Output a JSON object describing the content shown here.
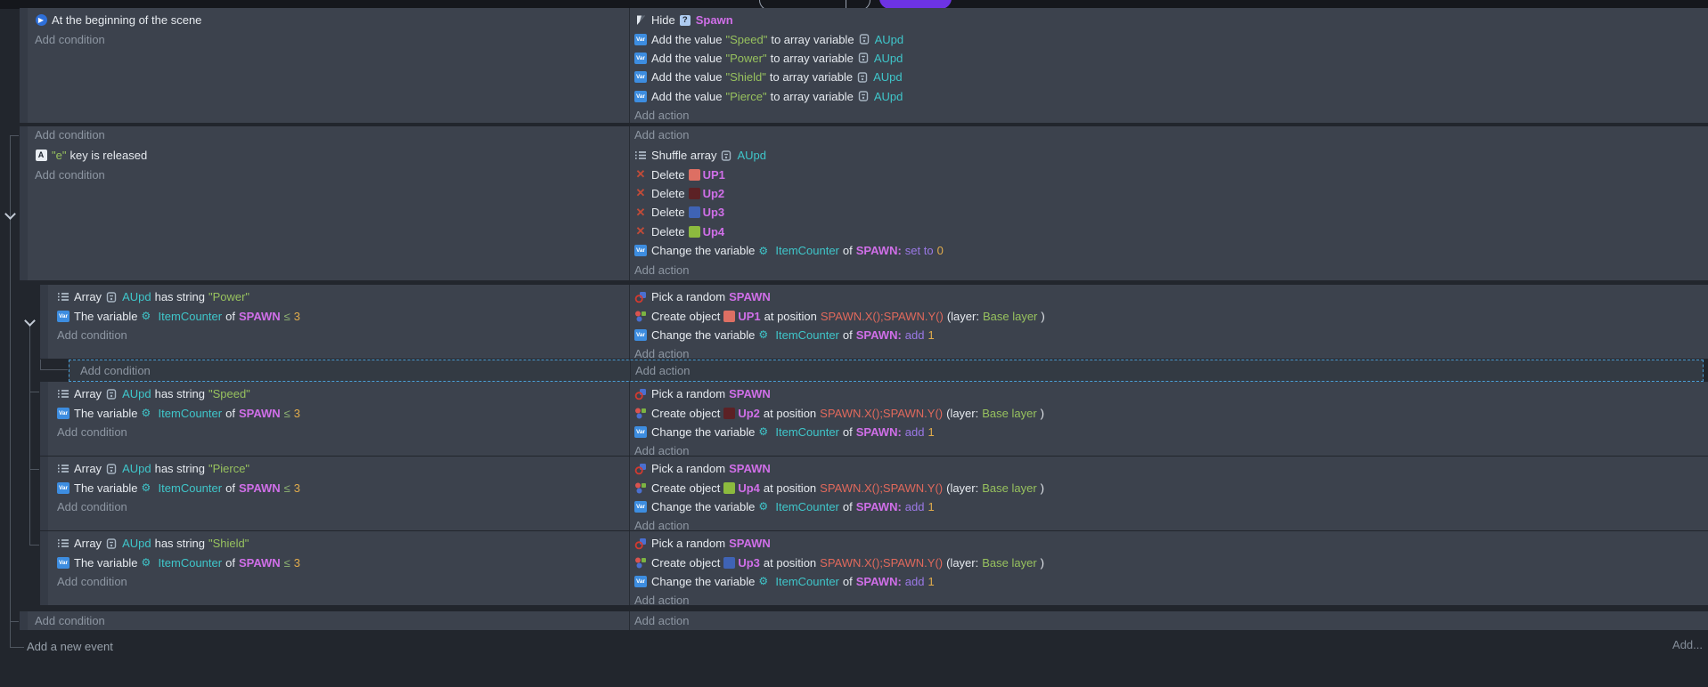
{
  "topbar": {
    "buttons": [
      {
        "name": "toolbar-split-button",
        "style": "outlined"
      },
      {
        "name": "toolbar-primary-button",
        "color": "#6d33e3"
      }
    ]
  },
  "colors": {
    "object_name": "#d06fe8",
    "string_literal": "#97c15e",
    "variable": "#3fc6ca",
    "number": "#e0ab4c",
    "operator": "#9b79e6",
    "expression": "#e0695c",
    "event_background": "#3c424d",
    "selection_dashed": "#4b9fd6",
    "swatch_up1": "#dd6f63",
    "swatch_up2": "#5c2125",
    "swatch_up3": "#3f63b5",
    "swatch_up4": "#8cba3e"
  },
  "events": [
    {
      "conditions": [
        [
          {
            "i": "scene-begin-icon"
          },
          {
            "k": "t",
            "v": "At the beginning of the scene"
          }
        ],
        [
          {
            "k": "ph",
            "v": "Add condition"
          }
        ]
      ],
      "actions": [
        [
          {
            "i": "hide-object-icon"
          },
          {
            "k": "t",
            "v": "Hide"
          },
          {
            "i": "question-badge-icon"
          },
          {
            "k": "obj",
            "v": "Spawn"
          }
        ],
        [
          {
            "i": "variable-icon"
          },
          {
            "k": "t",
            "v": "Add the value"
          },
          {
            "k": "str",
            "v": "\"Speed\""
          },
          {
            "k": "t",
            "v": "to array variable"
          },
          {
            "i": "structure-badge-icon"
          },
          {
            "k": "var",
            "v": "AUpd"
          }
        ],
        [
          {
            "i": "variable-icon"
          },
          {
            "k": "t",
            "v": "Add the value"
          },
          {
            "k": "str",
            "v": "\"Power\""
          },
          {
            "k": "t",
            "v": "to array variable"
          },
          {
            "i": "structure-badge-icon"
          },
          {
            "k": "var",
            "v": "AUpd"
          }
        ],
        [
          {
            "i": "variable-icon"
          },
          {
            "k": "t",
            "v": "Add the value"
          },
          {
            "k": "str",
            "v": "\"Shield\""
          },
          {
            "k": "t",
            "v": "to array variable"
          },
          {
            "i": "structure-badge-icon"
          },
          {
            "k": "var",
            "v": "AUpd"
          }
        ],
        [
          {
            "i": "variable-icon"
          },
          {
            "k": "t",
            "v": "Add the value"
          },
          {
            "k": "str",
            "v": "\"Pierce\""
          },
          {
            "k": "t",
            "v": "to array variable"
          },
          {
            "i": "structure-badge-icon"
          },
          {
            "k": "var",
            "v": "AUpd"
          }
        ],
        [
          {
            "k": "ph",
            "v": "Add action"
          }
        ]
      ]
    },
    {
      "conditions": [
        [
          {
            "k": "ph",
            "v": "Add condition"
          }
        ]
      ],
      "actions": [
        [
          {
            "k": "ph",
            "v": "Add action"
          }
        ]
      ]
    },
    {
      "conditions": [
        [
          {
            "i": "keyboard-key-icon"
          },
          {
            "k": "str",
            "v": "\"e\""
          },
          {
            "k": "t",
            "v": "key is released"
          }
        ],
        [
          {
            "k": "ph",
            "v": "Add condition"
          }
        ]
      ],
      "actions": [
        [
          {
            "i": "shuffle-array-icon"
          },
          {
            "k": "t",
            "v": "Shuffle array"
          },
          {
            "i": "structure-badge-icon"
          },
          {
            "k": "var",
            "v": "AUpd"
          }
        ],
        [
          {
            "i": "delete-icon"
          },
          {
            "k": "t",
            "v": "Delete"
          },
          {
            "sw": "#dd6f63",
            "name": "up1-color-swatch"
          },
          {
            "k": "obj",
            "v": "UP1"
          }
        ],
        [
          {
            "i": "delete-icon"
          },
          {
            "k": "t",
            "v": "Delete"
          },
          {
            "sw": "#5c2125",
            "name": "up2-color-swatch"
          },
          {
            "k": "obj",
            "v": "Up2"
          }
        ],
        [
          {
            "i": "delete-icon"
          },
          {
            "k": "t",
            "v": "Delete"
          },
          {
            "sw": "#3f63b5",
            "name": "up3-color-swatch"
          },
          {
            "k": "obj",
            "v": "Up3"
          }
        ],
        [
          {
            "i": "delete-icon"
          },
          {
            "k": "t",
            "v": "Delete"
          },
          {
            "sw": "#8cba3e",
            "name": "up4-color-swatch"
          },
          {
            "k": "obj",
            "v": "Up4"
          }
        ],
        [
          {
            "i": "variable-icon"
          },
          {
            "k": "t",
            "v": "Change the variable"
          },
          {
            "i": "gear-icon"
          },
          {
            "k": "var",
            "v": "ItemCounter"
          },
          {
            "k": "t",
            "v": "of"
          },
          {
            "k": "obj",
            "v": "SPAWN:"
          },
          {
            "k": "op",
            "v": "set to"
          },
          {
            "k": "num",
            "v": "0"
          }
        ],
        [
          {
            "k": "ph",
            "v": "Add action"
          }
        ]
      ]
    },
    {
      "conditions": [
        [
          {
            "i": "array-icon"
          },
          {
            "k": "t",
            "v": "Array"
          },
          {
            "i": "structure-badge-icon"
          },
          {
            "k": "var",
            "v": "AUpd"
          },
          {
            "k": "t",
            "v": "has string"
          },
          {
            "k": "str",
            "v": "\"Power\""
          }
        ],
        [
          {
            "i": "variable-icon"
          },
          {
            "k": "t",
            "v": "The variable"
          },
          {
            "i": "gear-icon"
          },
          {
            "k": "var",
            "v": "ItemCounter"
          },
          {
            "k": "t",
            "v": "of"
          },
          {
            "k": "obj",
            "v": "SPAWN"
          },
          {
            "k": "cmp",
            "v": "≤"
          },
          {
            "k": "num",
            "v": "3"
          }
        ],
        [
          {
            "k": "ph",
            "v": "Add condition"
          }
        ]
      ],
      "actions": [
        [
          {
            "i": "pick-random-icon"
          },
          {
            "k": "t",
            "v": "Pick a random"
          },
          {
            "k": "obj",
            "v": "SPAWN"
          }
        ],
        [
          {
            "i": "create-object-icon"
          },
          {
            "k": "t",
            "v": "Create object"
          },
          {
            "sw": "#dd6f63",
            "name": "up1-color-swatch"
          },
          {
            "k": "obj",
            "v": "UP1"
          },
          {
            "k": "t",
            "v": "at position"
          },
          {
            "k": "expr",
            "v": "SPAWN.X();SPAWN.Y()"
          },
          {
            "k": "t",
            "v": "(layer:"
          },
          {
            "k": "str",
            "v": "Base layer"
          },
          {
            "k": "t",
            "v": ")"
          }
        ],
        [
          {
            "i": "variable-icon"
          },
          {
            "k": "t",
            "v": "Change the variable"
          },
          {
            "i": "gear-icon"
          },
          {
            "k": "var",
            "v": "ItemCounter"
          },
          {
            "k": "t",
            "v": "of"
          },
          {
            "k": "obj",
            "v": "SPAWN:"
          },
          {
            "k": "op",
            "v": "add"
          },
          {
            "k": "num",
            "v": "1"
          }
        ],
        [
          {
            "k": "ph",
            "v": "Add action"
          }
        ]
      ]
    },
    {
      "conditions": [
        [
          {
            "k": "ph",
            "v": "Add condition"
          }
        ]
      ],
      "actions": [
        [
          {
            "k": "ph",
            "v": "Add action"
          }
        ]
      ]
    },
    {
      "conditions": [
        [
          {
            "i": "array-icon"
          },
          {
            "k": "t",
            "v": "Array"
          },
          {
            "i": "structure-badge-icon"
          },
          {
            "k": "var",
            "v": "AUpd"
          },
          {
            "k": "t",
            "v": "has string"
          },
          {
            "k": "str",
            "v": "\"Speed\""
          }
        ],
        [
          {
            "i": "variable-icon"
          },
          {
            "k": "t",
            "v": "The variable"
          },
          {
            "i": "gear-icon"
          },
          {
            "k": "var",
            "v": "ItemCounter"
          },
          {
            "k": "t",
            "v": "of"
          },
          {
            "k": "obj",
            "v": "SPAWN"
          },
          {
            "k": "cmp",
            "v": "≤"
          },
          {
            "k": "num",
            "v": "3"
          }
        ],
        [
          {
            "k": "ph",
            "v": "Add condition"
          }
        ]
      ],
      "actions": [
        [
          {
            "i": "pick-random-icon"
          },
          {
            "k": "t",
            "v": "Pick a random"
          },
          {
            "k": "obj",
            "v": "SPAWN"
          }
        ],
        [
          {
            "i": "create-object-icon"
          },
          {
            "k": "t",
            "v": "Create object"
          },
          {
            "sw": "#5c2125",
            "name": "up2-color-swatch"
          },
          {
            "k": "obj",
            "v": "Up2"
          },
          {
            "k": "t",
            "v": "at position"
          },
          {
            "k": "expr",
            "v": "SPAWN.X();SPAWN.Y()"
          },
          {
            "k": "t",
            "v": "(layer:"
          },
          {
            "k": "str",
            "v": "Base layer"
          },
          {
            "k": "t",
            "v": ")"
          }
        ],
        [
          {
            "i": "variable-icon"
          },
          {
            "k": "t",
            "v": "Change the variable"
          },
          {
            "i": "gear-icon"
          },
          {
            "k": "var",
            "v": "ItemCounter"
          },
          {
            "k": "t",
            "v": "of"
          },
          {
            "k": "obj",
            "v": "SPAWN:"
          },
          {
            "k": "op",
            "v": "add"
          },
          {
            "k": "num",
            "v": "1"
          }
        ],
        [
          {
            "k": "ph",
            "v": "Add action"
          }
        ]
      ]
    },
    {
      "conditions": [
        [
          {
            "i": "array-icon"
          },
          {
            "k": "t",
            "v": "Array"
          },
          {
            "i": "structure-badge-icon"
          },
          {
            "k": "var",
            "v": "AUpd"
          },
          {
            "k": "t",
            "v": "has string"
          },
          {
            "k": "str",
            "v": "\"Pierce\""
          }
        ],
        [
          {
            "i": "variable-icon"
          },
          {
            "k": "t",
            "v": "The variable"
          },
          {
            "i": "gear-icon"
          },
          {
            "k": "var",
            "v": "ItemCounter"
          },
          {
            "k": "t",
            "v": "of"
          },
          {
            "k": "obj",
            "v": "SPAWN"
          },
          {
            "k": "cmp",
            "v": "≤"
          },
          {
            "k": "num",
            "v": "3"
          }
        ],
        [
          {
            "k": "ph",
            "v": "Add condition"
          }
        ]
      ],
      "actions": [
        [
          {
            "i": "pick-random-icon"
          },
          {
            "k": "t",
            "v": "Pick a random"
          },
          {
            "k": "obj",
            "v": "SPAWN"
          }
        ],
        [
          {
            "i": "create-object-icon"
          },
          {
            "k": "t",
            "v": "Create object"
          },
          {
            "sw": "#8cba3e",
            "name": "up4-color-swatch"
          },
          {
            "k": "obj",
            "v": "Up4"
          },
          {
            "k": "t",
            "v": "at position"
          },
          {
            "k": "expr",
            "v": "SPAWN.X();SPAWN.Y()"
          },
          {
            "k": "t",
            "v": "(layer:"
          },
          {
            "k": "str",
            "v": "Base layer"
          },
          {
            "k": "t",
            "v": ")"
          }
        ],
        [
          {
            "i": "variable-icon"
          },
          {
            "k": "t",
            "v": "Change the variable"
          },
          {
            "i": "gear-icon"
          },
          {
            "k": "var",
            "v": "ItemCounter"
          },
          {
            "k": "t",
            "v": "of"
          },
          {
            "k": "obj",
            "v": "SPAWN:"
          },
          {
            "k": "op",
            "v": "add"
          },
          {
            "k": "num",
            "v": "1"
          }
        ],
        [
          {
            "k": "ph",
            "v": "Add action"
          }
        ]
      ]
    },
    {
      "conditions": [
        [
          {
            "i": "array-icon"
          },
          {
            "k": "t",
            "v": "Array"
          },
          {
            "i": "structure-badge-icon"
          },
          {
            "k": "var",
            "v": "AUpd"
          },
          {
            "k": "t",
            "v": "has string"
          },
          {
            "k": "str",
            "v": "\"Shield\""
          }
        ],
        [
          {
            "i": "variable-icon"
          },
          {
            "k": "t",
            "v": "The variable"
          },
          {
            "i": "gear-icon"
          },
          {
            "k": "var",
            "v": "ItemCounter"
          },
          {
            "k": "t",
            "v": "of"
          },
          {
            "k": "obj",
            "v": "SPAWN"
          },
          {
            "k": "cmp",
            "v": "≤"
          },
          {
            "k": "num",
            "v": "3"
          }
        ],
        [
          {
            "k": "ph",
            "v": "Add condition"
          }
        ]
      ],
      "actions": [
        [
          {
            "i": "pick-random-icon"
          },
          {
            "k": "t",
            "v": "Pick a random"
          },
          {
            "k": "obj",
            "v": "SPAWN"
          }
        ],
        [
          {
            "i": "create-object-icon"
          },
          {
            "k": "t",
            "v": "Create object"
          },
          {
            "sw": "#3f63b5",
            "name": "up3-color-swatch"
          },
          {
            "k": "obj",
            "v": "Up3"
          },
          {
            "k": "t",
            "v": "at position"
          },
          {
            "k": "expr",
            "v": "SPAWN.X();SPAWN.Y()"
          },
          {
            "k": "t",
            "v": "(layer:"
          },
          {
            "k": "str",
            "v": "Base layer"
          },
          {
            "k": "t",
            "v": ")"
          }
        ],
        [
          {
            "i": "variable-icon"
          },
          {
            "k": "t",
            "v": "Change the variable"
          },
          {
            "i": "gear-icon"
          },
          {
            "k": "var",
            "v": "ItemCounter"
          },
          {
            "k": "t",
            "v": "of"
          },
          {
            "k": "obj",
            "v": "SPAWN:"
          },
          {
            "k": "op",
            "v": "add"
          },
          {
            "k": "num",
            "v": "1"
          }
        ],
        [
          {
            "k": "ph",
            "v": "Add action"
          }
        ]
      ]
    },
    {
      "conditions": [
        [
          {
            "k": "ph",
            "v": "Add condition"
          }
        ]
      ],
      "actions": [
        [
          {
            "k": "ph",
            "v": "Add action"
          }
        ]
      ]
    }
  ],
  "footer": {
    "add_new_event": "Add a new event",
    "add_more": "Add..."
  }
}
